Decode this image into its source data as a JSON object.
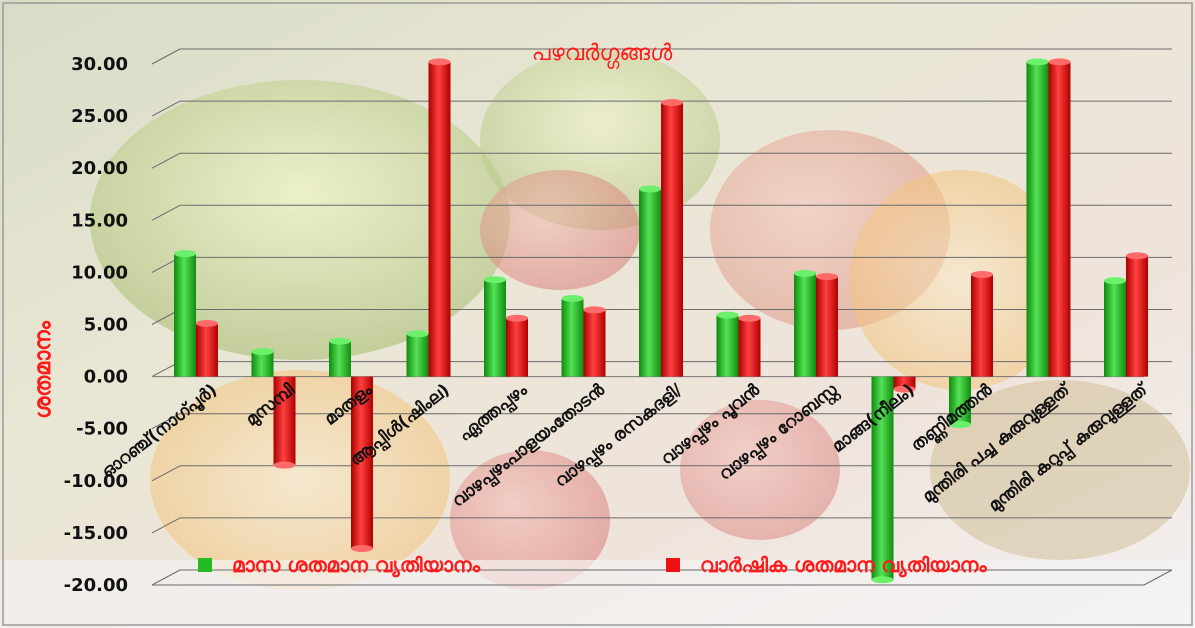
{
  "chart_data": {
    "type": "bar",
    "title": "പഴവർഗ്ഗങ്ങൾ",
    "ylabel": "ശതമാനം",
    "xlabel": "",
    "ylim": [
      -20,
      30
    ],
    "yticks": [
      "30.00",
      "25.00",
      "20.00",
      "15.00",
      "10.00",
      "5.00",
      "0.00",
      "-5.00",
      "-10.00",
      "-15.00",
      "-20.00"
    ],
    "grid": true,
    "legend_position": "bottom",
    "categories": [
      "ഓറഞ്ച്(നാഗ്പൂർ)",
      "മുസമ്പി",
      "മാതളം",
      "ആപ്പിൾ(ഷിംല)",
      "ഏത്തപ്പഴം",
      "വാഴപ്പഴംപാളയംതോടൻ",
      "വാഴപ്പഴം രസകദളി/",
      "വാഴപ്പഴം പൂവൻ",
      "വാഴപ്പഴം റോബസ്റ്റ",
      "മാങ്ങ(നീലം)",
      "തണ്ണിമത്തൻ",
      "മുന്തിരി പച്ച കുരുവുള്ളത്",
      "മുന്തിരി കറുപ്പ് കുരുവുള്ളത്"
    ],
    "series": [
      {
        "name": "മാസ ശതമാന വ്യതിയാനം",
        "color": "#22bb22",
        "values": [
          11.8,
          2.4,
          3.4,
          4.1,
          9.3,
          7.5,
          18.0,
          5.9,
          9.9,
          -19.5,
          -4.6,
          30.2,
          9.2
        ]
      },
      {
        "name": "വാർഷിക ശതമാന വ്യതിയാനം",
        "color": "#ee1111",
        "values": [
          5.1,
          -8.5,
          -16.5,
          30.2,
          5.6,
          6.4,
          26.3,
          5.6,
          9.6,
          -1.2,
          9.8,
          30.2,
          11.6
        ]
      }
    ]
  }
}
